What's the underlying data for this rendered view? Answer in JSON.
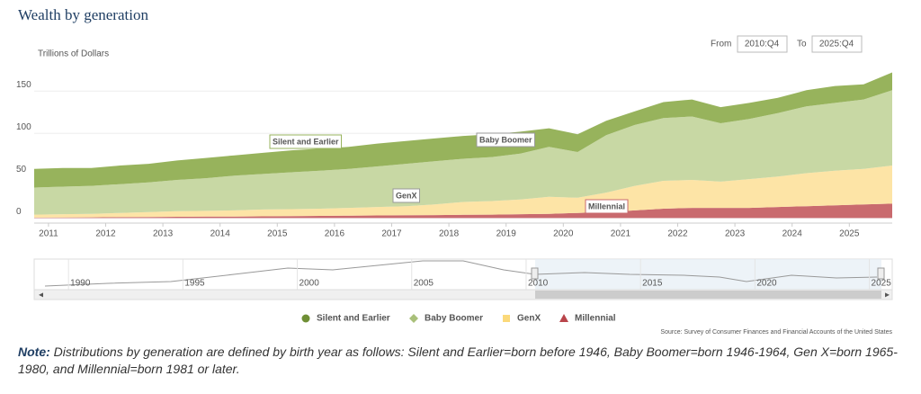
{
  "chart_data": {
    "type": "stacked-area",
    "title": "Wealth by generation",
    "y_label": "Trillions of Dollars",
    "range_from_label": "From",
    "range_from": "2010:Q4",
    "range_to_label": "To",
    "range_to": "2025:Q4",
    "x": [
      2010.75,
      2011.25,
      2011.75,
      2012.25,
      2012.75,
      2013.25,
      2013.75,
      2014.25,
      2014.75,
      2015.25,
      2015.75,
      2016.25,
      2016.75,
      2017.25,
      2017.75,
      2018.25,
      2018.75,
      2019.25,
      2019.75,
      2020.25,
      2020.75,
      2021.25,
      2021.75,
      2022.25,
      2022.75,
      2023.25,
      2023.75,
      2024.25,
      2024.75,
      2025.25,
      2025.75
    ],
    "xlim": [
      2010.75,
      2025.75
    ],
    "xticks": [
      2011,
      2012,
      2013,
      2014,
      2015,
      2016,
      2017,
      2018,
      2019,
      2020,
      2021,
      2022,
      2023,
      2024,
      2025
    ],
    "ylim": [
      -6,
      180
    ],
    "yticks": [
      0,
      50,
      100,
      150
    ],
    "grid": true,
    "series": [
      {
        "name": "Silent and Earlier",
        "color": "#97b35c",
        "marker": "circle",
        "values": [
          22,
          22,
          21,
          22,
          22,
          23,
          24,
          24,
          25,
          26,
          26,
          26,
          27,
          27,
          27,
          27,
          27,
          26,
          22,
          21,
          17,
          16,
          19,
          20,
          19,
          19,
          18,
          19,
          20,
          18,
          21
        ]
      },
      {
        "name": "Baby Boomer",
        "color": "#c8d8a4",
        "marker": "diamond",
        "values": [
          32,
          32.5,
          33,
          34,
          35,
          37,
          38.5,
          41,
          42,
          43.5,
          45,
          46,
          48,
          50,
          51,
          51,
          52,
          54,
          59,
          54,
          68,
          72,
          74,
          75,
          69,
          71,
          75,
          79,
          80,
          82,
          89
        ]
      },
      {
        "name": "GenX",
        "color": "#fde4a6",
        "marker": "square",
        "values": [
          3.5,
          3.9,
          4.2,
          5,
          5.8,
          6.6,
          6.9,
          7.2,
          8,
          8.3,
          8.5,
          9.2,
          10,
          10.8,
          12.5,
          15.2,
          16,
          17.5,
          20,
          18,
          23,
          29,
          33,
          33,
          31,
          34,
          36,
          39,
          41,
          42,
          45
        ]
      },
      {
        "name": "Millennial",
        "color": "#c96a6e",
        "marker": "triangle",
        "values": [
          0.5,
          0.6,
          0.8,
          1,
          1.2,
          1.4,
          1.6,
          1.8,
          2,
          2.2,
          2.5,
          2.8,
          3,
          3.2,
          3.5,
          3.8,
          4,
          4.5,
          5,
          6,
          7,
          9,
          11,
          12,
          12,
          12,
          13,
          14,
          15,
          16,
          17
        ]
      }
    ],
    "annotations": [
      "Silent and Earlier",
      "Baby Boomer",
      "GenX",
      "Millennial"
    ],
    "navigator": {
      "xlim": [
        1988.5,
        2026
      ],
      "xticks": [
        1990,
        1995,
        2000,
        2005,
        2010,
        2015,
        2020,
        2025
      ]
    },
    "source": "Source: Survey of Consumer Finances and Financial Accounts of the United States"
  },
  "note": {
    "label": "Note:",
    "text": "Distributions by generation are defined by birth year as follows: Silent and Earlier=born before 1946, Baby Boomer=born 1946-1964, Gen X=born 1965-1980, and Millennial=born 1981 or later."
  }
}
